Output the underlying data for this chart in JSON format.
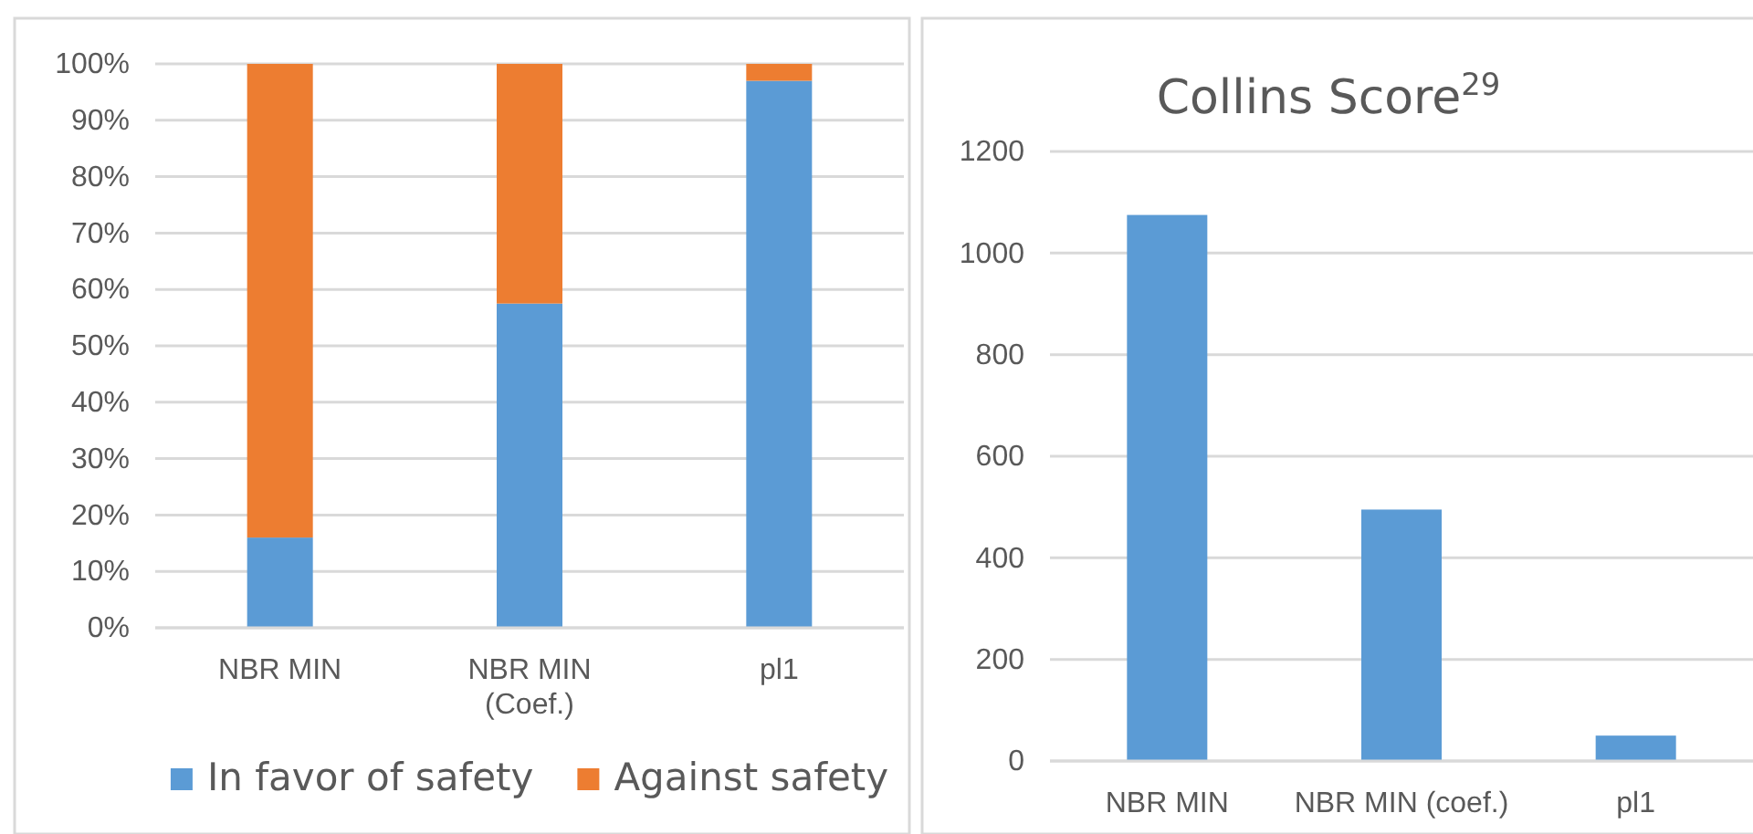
{
  "chart_data": [
    {
      "type": "bar",
      "stacked": true,
      "categories": [
        "NBR MIN",
        "NBR MIN (Coef.)",
        "pl1"
      ],
      "series": [
        {
          "name": "In favor of safety",
          "color": "#5b9bd5",
          "values": [
            16,
            57.5,
            97
          ]
        },
        {
          "name": "Against safety",
          "color": "#ed7d31",
          "values": [
            84,
            42.5,
            3
          ]
        }
      ],
      "ylim": [
        0,
        100
      ],
      "yticks": [
        {
          "value": 0,
          "label": "0%"
        },
        {
          "value": 10,
          "label": "10%"
        },
        {
          "value": 20,
          "label": "20%"
        },
        {
          "value": 30,
          "label": "30%"
        },
        {
          "value": 40,
          "label": "40%"
        },
        {
          "value": 50,
          "label": "50%"
        },
        {
          "value": 60,
          "label": "60%"
        },
        {
          "value": 70,
          "label": "70%"
        },
        {
          "value": 80,
          "label": "80%"
        },
        {
          "value": 90,
          "label": "90%"
        },
        {
          "value": 100,
          "label": "100%"
        }
      ],
      "grid": "y",
      "legend": "bottom"
    },
    {
      "type": "bar",
      "title": "Collins Score$^{29}$",
      "categories": [
        "NBR MIN",
        "NBR MIN (coef.)",
        "pl1"
      ],
      "series": [
        {
          "color": "#5b9bd5",
          "values": [
            1075,
            495,
            50
          ]
        }
      ],
      "ylim": [
        0,
        1200
      ],
      "yticks": [
        0,
        200,
        400,
        600,
        800,
        1000,
        1200
      ],
      "grid": "y",
      "legend": false
    }
  ]
}
